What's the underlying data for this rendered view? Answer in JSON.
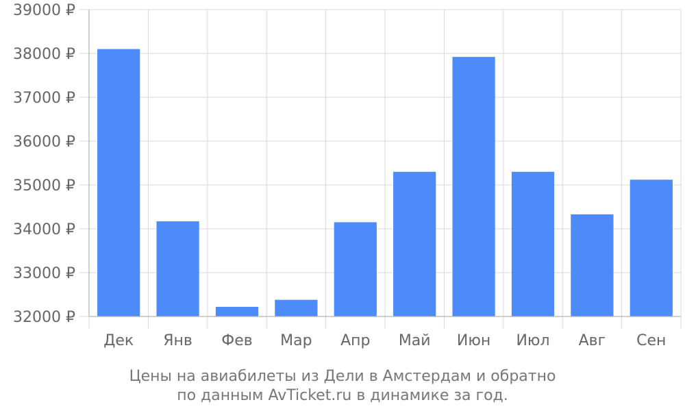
{
  "caption": {
    "line1": "Цены на авиабилеты из Дели в Амстердам и обратно",
    "line2": "по данным AvTicket.ru в динамике за год."
  },
  "chart_data": {
    "type": "bar",
    "categories": [
      "Дек",
      "Янв",
      "Фев",
      "Мар",
      "Апр",
      "Май",
      "Июн",
      "Июл",
      "Авг",
      "Сен"
    ],
    "values": [
      38100,
      34170,
      32220,
      32380,
      34150,
      35300,
      37920,
      35300,
      34330,
      35120
    ],
    "ylim": [
      32000,
      39000
    ],
    "yticks": [
      32000,
      33000,
      34000,
      35000,
      36000,
      37000,
      38000,
      39000
    ],
    "ytick_labels": [
      "32000 ₽",
      "33000 ₽",
      "34000 ₽",
      "35000 ₽",
      "36000 ₽",
      "37000 ₽",
      "38000 ₽",
      "39000 ₽"
    ],
    "grid": true,
    "bar_color": "#4d8afa",
    "title": "",
    "xlabel": "",
    "ylabel": ""
  }
}
